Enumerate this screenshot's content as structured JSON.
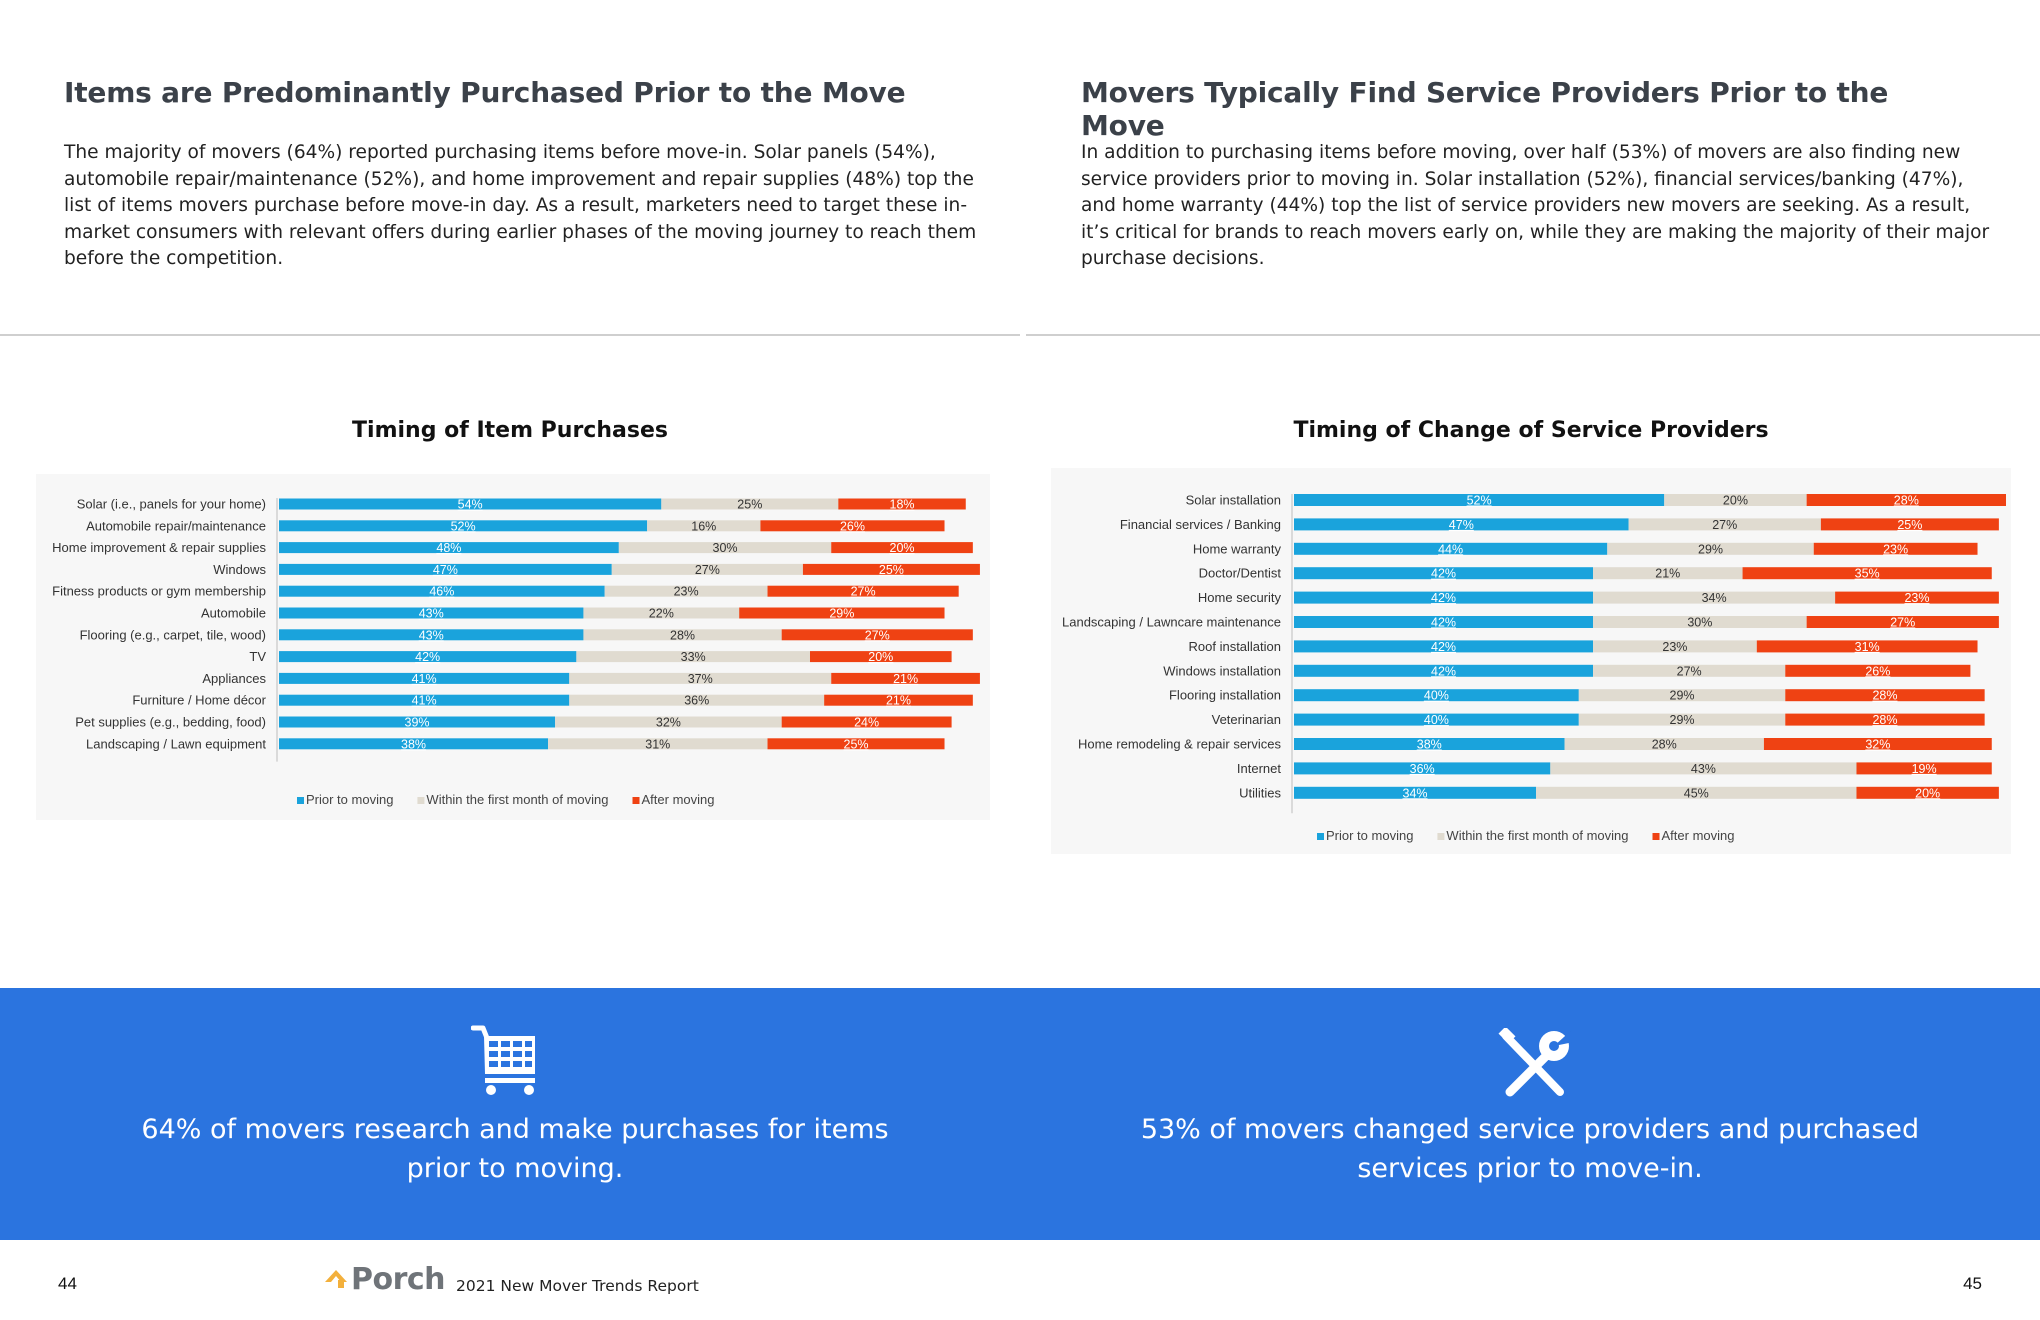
{
  "left_page": {
    "heading": "Items are Predominantly Purchased Prior to the Move",
    "paragraph": "The majority of movers (64%) reported purchasing items before move-in. Solar panels (54%), automobile repair/maintenance (52%), and home improvement and repair supplies (48%) top the list of items movers purchase before move-in day. As a result, marketers need to target these in-market consumers with relevant offers during earlier phases of the moving journey to reach them before the competition.",
    "chart_title": "Timing of Item Purchases",
    "callout": "64% of movers research and make purchases for items prior to moving.",
    "callout_icon": "shopping-cart-icon",
    "page_number": "44"
  },
  "right_page": {
    "heading": "Movers Typically Find Service Providers Prior to the Move",
    "paragraph": "In addition to purchasing items before moving, over half (53%) of movers are also finding new service providers prior to moving in. Solar installation (52%), financial services/banking (47%), and home warranty (44%) top the list of service providers new movers are seeking. As a result, it’s critical for brands to reach movers early on, while they are making the majority of their major purchase decisions.",
    "chart_title": "Timing of Change of Service Providers",
    "callout": "53% of movers changed service providers and purchased services prior to move-in.",
    "callout_icon": "wrench-screwdriver-icon",
    "page_number": "45"
  },
  "footer": {
    "logo_text": "Porch",
    "report_title": "2021 New Mover Trends Report"
  },
  "colors": {
    "prior": "#1aa3dc",
    "within": "#e0dbd0",
    "after": "#ef4213",
    "band": "#2b74df",
    "logo_mark": "#f3b03c"
  },
  "chart_data": [
    {
      "type": "bar",
      "orientation": "horizontal",
      "stacked": "100%",
      "title": "Timing of Item Purchases",
      "categories": [
        "Solar (i.e., panels for your home)",
        "Automobile repair/maintenance",
        "Home improvement & repair supplies",
        "Windows",
        "Fitness products or gym membership",
        "Automobile",
        "Flooring (e.g., carpet, tile, wood)",
        "TV",
        "Appliances",
        "Furniture / Home décor",
        "Pet supplies (e.g., bedding, food)",
        "Landscaping / Lawn equipment"
      ],
      "series": [
        {
          "name": "Prior to moving",
          "color": "#1aa3dc",
          "values": [
            54,
            52,
            48,
            47,
            46,
            43,
            43,
            42,
            41,
            41,
            39,
            38
          ]
        },
        {
          "name": "Within the first month of moving",
          "color": "#e0dbd0",
          "values": [
            25,
            16,
            30,
            27,
            23,
            22,
            28,
            33,
            37,
            36,
            32,
            31
          ]
        },
        {
          "name": "After moving",
          "color": "#ef4213",
          "values": [
            18,
            26,
            20,
            25,
            27,
            29,
            27,
            20,
            21,
            21,
            24,
            25
          ]
        }
      ],
      "legend": "bottom"
    },
    {
      "type": "bar",
      "orientation": "horizontal",
      "stacked": "100%",
      "title": "Timing of Change of Service Providers",
      "categories": [
        "Solar installation",
        "Financial services / Banking",
        "Home warranty",
        "Doctor/Dentist",
        "Home security",
        "Landscaping / Lawncare maintenance",
        "Roof installation",
        "Windows installation",
        "Flooring installation",
        "Veterinarian",
        "Home remodeling & repair services",
        "Internet",
        "Utilities"
      ],
      "series": [
        {
          "name": "Prior to moving",
          "color": "#1aa3dc",
          "values": [
            52,
            47,
            44,
            42,
            42,
            42,
            42,
            42,
            40,
            40,
            38,
            36,
            34
          ]
        },
        {
          "name": "Within the first month of moving",
          "color": "#e0dbd0",
          "values": [
            20,
            27,
            29,
            21,
            34,
            30,
            23,
            27,
            29,
            29,
            28,
            43,
            45
          ]
        },
        {
          "name": "After moving",
          "color": "#ef4213",
          "values": [
            28,
            25,
            23,
            35,
            23,
            27,
            31,
            26,
            28,
            28,
            32,
            19,
            20
          ]
        }
      ],
      "legend": "bottom"
    }
  ]
}
